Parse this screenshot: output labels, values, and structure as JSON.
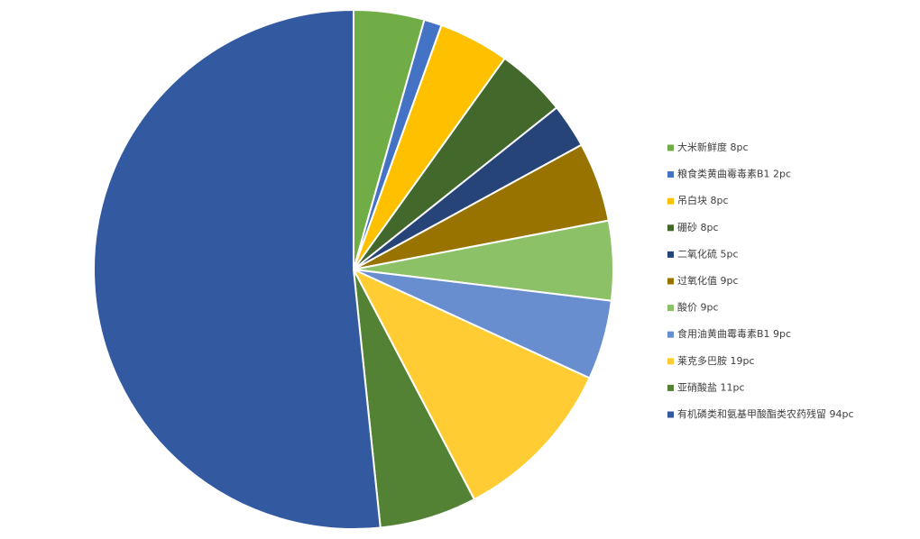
{
  "chart_data": {
    "type": "pie",
    "categories": [
      "大米新鲜度  8pc",
      "粮食类黄曲霉毒素B1 2pc",
      "吊白块 8pc",
      "硼砂 8pc",
      "二氧化硫 5pc",
      "过氧化值 9pc",
      "酸价 9pc",
      "食用油黄曲霉毒素B1 9pc",
      "莱克多巴胺 19pc",
      "亚硝酸盐 11pc",
      "有机磷类和氨基甲酸酯类农药残留 94pc"
    ],
    "values": [
      8,
      2,
      8,
      8,
      5,
      9,
      9,
      9,
      19,
      11,
      94
    ],
    "colors": [
      "#70ad47",
      "#4472c4",
      "#ffc000",
      "#43682b",
      "#264478",
      "#997300",
      "#8cc168",
      "#698ed0",
      "#ffcd33",
      "#548235",
      "#335aa1"
    ],
    "legend": "right"
  }
}
